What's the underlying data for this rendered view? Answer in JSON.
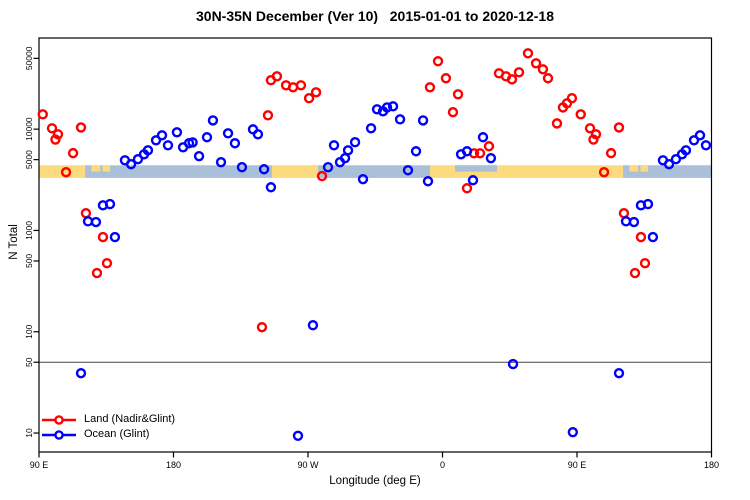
{
  "title": "30N-35N December (Ver 10)   2015-01-01 to 2020-12-18",
  "colors": {
    "land": "#ff0000",
    "ocean": "#0000ff",
    "land_band": "#fcdb7e",
    "ocean_band": "#aabfd8",
    "axis": "#000000",
    "refline": "#444444"
  },
  "legend": {
    "items": [
      {
        "label": "Land (Nadir&Glint)",
        "color_key": "land"
      },
      {
        "label": "Ocean (Glint)",
        "color_key": "ocean"
      }
    ]
  },
  "chart_data": {
    "type": "scatter",
    "title": "30N-35N December (Ver 10)   2015-01-01 to 2020-12-18",
    "xlabel": "Longitude (deg E)",
    "ylabel": "N Total",
    "x_domain_deg": [
      90,
      540
    ],
    "x_ticks": [
      {
        "pos": 90,
        "label": "90 E"
      },
      {
        "pos": 180,
        "label": "180"
      },
      {
        "pos": 270,
        "label": "90 W"
      },
      {
        "pos": 360,
        "label": "0"
      },
      {
        "pos": 450,
        "label": "90 E"
      },
      {
        "pos": 540,
        "label": "180"
      }
    ],
    "y_scale": "log10",
    "y_domain": [
      6.5,
      79400
    ],
    "y_ticks": [
      10,
      50,
      100,
      500,
      1000,
      5000,
      10000,
      50000
    ],
    "reference_line_n": 50,
    "grid": "off",
    "legend_position": "bottom-left-inside",
    "wrap_note": "axis spans 450 deg starting at 90E; points/band with lon 90..180 are drawn twice",
    "map_band": {
      "top_n": 4400,
      "bottom_n": 3300,
      "segments": [
        {
          "from": -180,
          "to": -114.1,
          "color": "ocean"
        },
        {
          "from": -114.1,
          "to": -83.3,
          "color": "land"
        },
        {
          "from": -83.3,
          "to": -8.4,
          "color": "ocean"
        },
        {
          "from": -8.4,
          "to": 90,
          "color": "land"
        },
        {
          "from": 90,
          "to": 120.8,
          "color": "land"
        },
        {
          "from": 120.8,
          "to": 180,
          "color": "ocean"
        },
        {
          "from": 8.4,
          "to": 36.5,
          "color": "ocean",
          "half": "top"
        },
        {
          "from": 125,
          "to": 131,
          "color": "land",
          "half": "top"
        },
        {
          "from": 132.5,
          "to": 137.5,
          "color": "land",
          "half": "top"
        }
      ]
    },
    "series": [
      {
        "name": "Land (Nadir&Glint)",
        "color_key": "land",
        "point_name": "land-point",
        "points": [
          [
            92.5,
            14000
          ],
          [
            98.7,
            10200
          ],
          [
            102.7,
            8900
          ],
          [
            101.0,
            7900
          ],
          [
            118.1,
            10400
          ],
          [
            112.8,
            5800
          ],
          [
            108.1,
            3760
          ],
          [
            121.4,
            1480
          ],
          [
            132.8,
            860
          ],
          [
            135.5,
            475
          ],
          [
            128.8,
            380
          ],
          [
            -120.8,
            111
          ],
          [
            -116.8,
            13700
          ],
          [
            -114.8,
            30400
          ],
          [
            -110.8,
            33200
          ],
          [
            -104.7,
            27100
          ],
          [
            -100.0,
            25900
          ],
          [
            -94.7,
            27100
          ],
          [
            -89.3,
            20200
          ],
          [
            -84.6,
            23100
          ],
          [
            -80.6,
            3440
          ],
          [
            -8.4,
            25900
          ],
          [
            -3.0,
            46800
          ],
          [
            2.3,
            31800
          ],
          [
            7.0,
            14700
          ],
          [
            10.4,
            22100
          ],
          [
            16.4,
            2610
          ],
          [
            21.1,
            5780
          ],
          [
            25.1,
            5780
          ],
          [
            31.1,
            6780
          ],
          [
            37.8,
            35600
          ],
          [
            42.5,
            33200
          ],
          [
            46.5,
            31000
          ],
          [
            51.2,
            36400
          ],
          [
            57.2,
            56100
          ],
          [
            62.6,
            44700
          ],
          [
            67.2,
            39000
          ],
          [
            70.6,
            31800
          ],
          [
            76.6,
            11400
          ],
          [
            80.6,
            16400
          ],
          [
            83.3,
            18000
          ],
          [
            86.6,
            20200
          ]
        ]
      },
      {
        "name": "Ocean (Glint)",
        "color_key": "ocean",
        "point_name": "ocean-point",
        "points": [
          [
            147.5,
            4930
          ],
          [
            151.6,
            4510
          ],
          [
            156.2,
            5050
          ],
          [
            160.3,
            5650
          ],
          [
            162.9,
            6180
          ],
          [
            168.3,
            7760
          ],
          [
            172.3,
            8690
          ],
          [
            176.3,
            6930
          ],
          [
            -177.7,
            9310
          ],
          [
            -173.6,
            6620
          ],
          [
            -169.6,
            7260
          ],
          [
            -167.2,
            7400
          ],
          [
            -162.9,
            5410
          ],
          [
            -157.6,
            8320
          ],
          [
            -153.6,
            12200
          ],
          [
            -148.2,
            4720
          ],
          [
            -143.5,
            9100
          ],
          [
            -138.9,
            7260
          ],
          [
            -134.2,
            4210
          ],
          [
            -126.8,
            9950
          ],
          [
            -123.5,
            8900
          ],
          [
            -119.4,
            4020
          ],
          [
            -114.8,
            2670
          ],
          [
            132.8,
            1770
          ],
          [
            137.5,
            1820
          ],
          [
            122.8,
            1230
          ],
          [
            128.1,
            1210
          ],
          [
            140.8,
            860
          ],
          [
            118.1,
            39
          ],
          [
            -86.7,
            116
          ],
          [
            -96.7,
            9.4
          ],
          [
            -76.6,
            4210
          ],
          [
            -72.6,
            6930
          ],
          [
            -68.6,
            4720
          ],
          [
            -65.2,
            5170
          ],
          [
            -63.2,
            6180
          ],
          [
            -58.5,
            7430
          ],
          [
            -53.2,
            3210
          ],
          [
            -47.8,
            10200
          ],
          [
            -43.8,
            15700
          ],
          [
            -39.8,
            15000
          ],
          [
            -37.1,
            16400
          ],
          [
            -33.1,
            16800
          ],
          [
            -28.4,
            12500
          ],
          [
            -23.1,
            3930
          ],
          [
            -17.7,
            6050
          ],
          [
            -13.0,
            12200
          ],
          [
            -9.7,
            3060
          ],
          [
            12.4,
            5650
          ],
          [
            16.4,
            6050
          ],
          [
            20.4,
            3130
          ],
          [
            27.1,
            8320
          ],
          [
            32.4,
            5170
          ],
          [
            47.2,
            48
          ],
          [
            87.2,
            10.2
          ]
        ]
      }
    ]
  }
}
